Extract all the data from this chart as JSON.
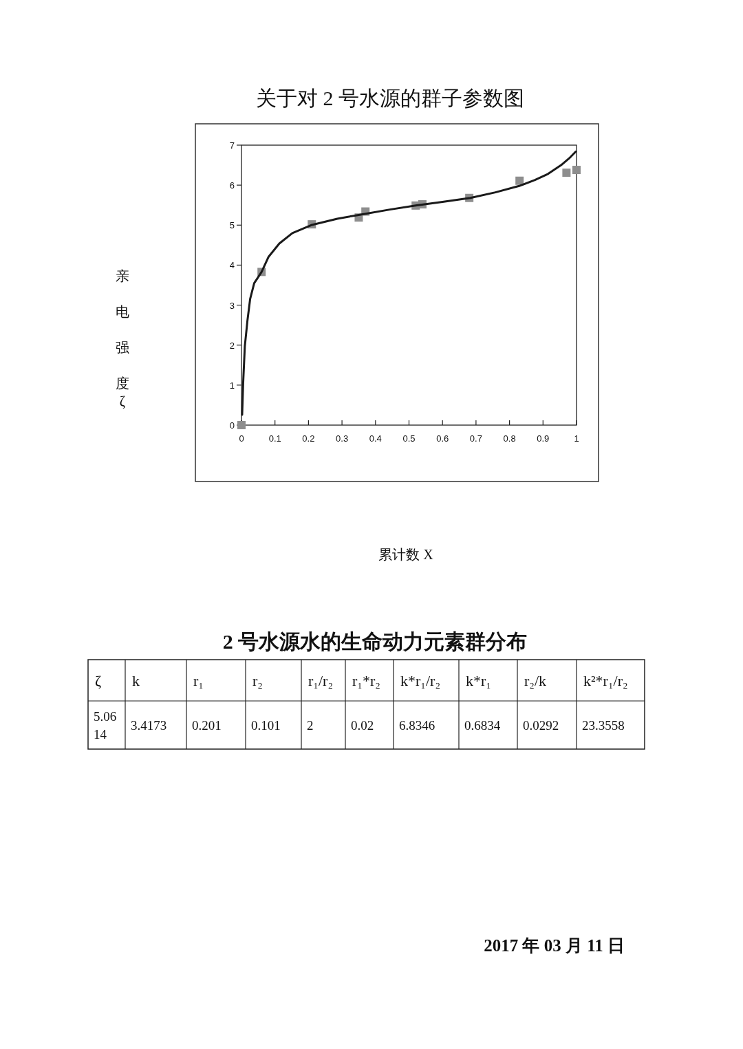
{
  "chart_data": [
    {
      "type": "scatter",
      "title": "关于对 2 号水源的群子参数图",
      "xlabel": "累计数 X",
      "ylabel": "亲电强度ζ",
      "xlim": [
        0,
        1
      ],
      "ylim": [
        0,
        7
      ],
      "xticks": [
        0,
        0.1,
        0.2,
        0.3,
        0.4,
        0.5,
        0.6,
        0.7,
        0.8,
        0.9,
        1
      ],
      "yticks": [
        0,
        1,
        2,
        3,
        4,
        5,
        6,
        7
      ],
      "series": [
        {
          "type": "scatter",
          "marker": "square",
          "color": "#8e8e8e",
          "x": [
            0,
            0.06,
            0.21,
            0.35,
            0.37,
            0.52,
            0.54,
            0.68,
            0.83,
            0.97,
            1.0
          ],
          "values": [
            0,
            3.83,
            5.02,
            5.19,
            5.34,
            5.49,
            5.52,
            5.68,
            6.11,
            6.31,
            6.38
          ]
        },
        {
          "type": "line",
          "marker": "none",
          "line_style": "solid",
          "color": "#1a1a1a",
          "x": [
            0.002,
            0.005,
            0.01,
            0.018,
            0.026,
            0.038,
            0.06,
            0.081,
            0.113,
            0.152,
            0.208,
            0.286,
            0.353,
            0.443,
            0.52,
            0.6,
            0.683,
            0.758,
            0.829,
            0.876,
            0.915,
            0.954,
            0.978,
            0.998
          ],
          "values": [
            0.26,
            1.05,
            1.97,
            2.63,
            3.16,
            3.55,
            3.83,
            4.21,
            4.54,
            4.8,
            5.0,
            5.16,
            5.26,
            5.39,
            5.49,
            5.58,
            5.68,
            5.82,
            5.98,
            6.13,
            6.28,
            6.5,
            6.67,
            6.84
          ]
        }
      ]
    },
    {
      "type": "other",
      "title": "2 号水源水的生命动力元素群分布",
      "categories": [
        "ζ",
        "k",
        "r₁",
        "r₂",
        "r₁/r₂",
        "r₁*r₂",
        "k*r₁/r₂",
        "k*r₁",
        "r₂/k",
        "k²*r₁/r₂"
      ],
      "values": [
        5.0614,
        3.4173,
        0.201,
        0.101,
        2,
        0.02,
        6.8346,
        0.6834,
        0.0292,
        23.3558
      ],
      "data_labels": true,
      "annotations": [
        "2017 年 03 月 11 日"
      ]
    }
  ]
}
